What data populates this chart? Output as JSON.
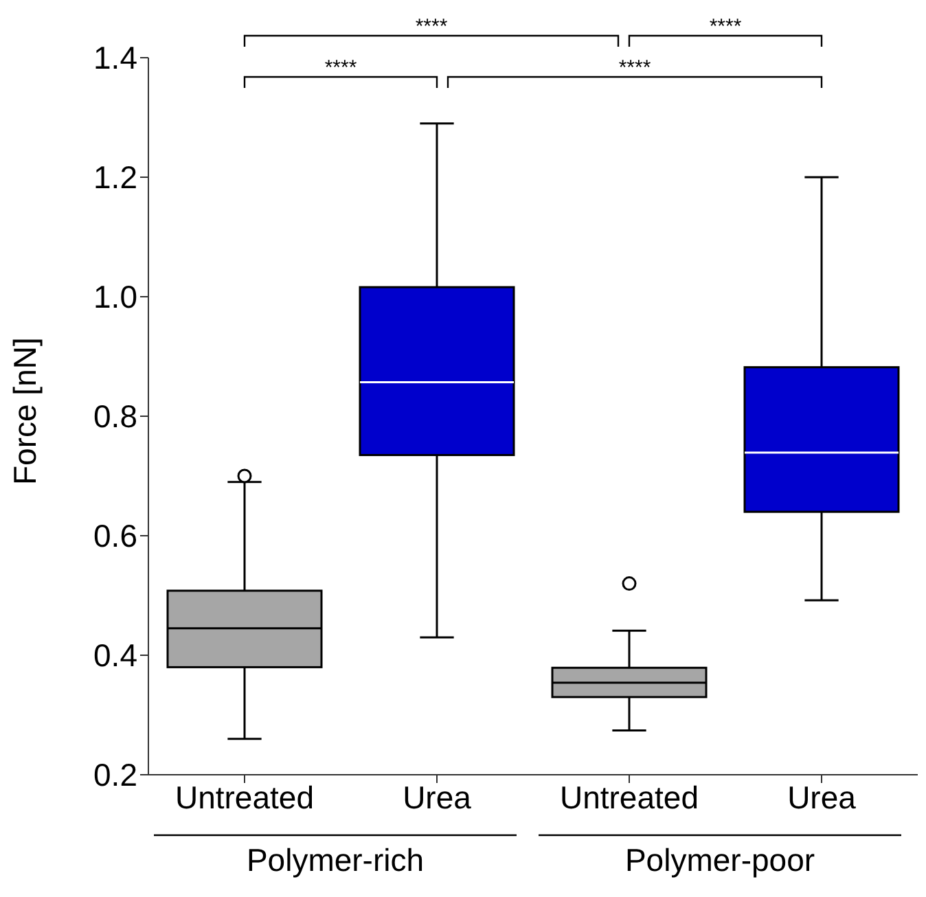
{
  "chart_data": {
    "type": "box",
    "ylabel": "Force [nN]",
    "categories": [
      "Untreated",
      "Urea",
      "Untreated",
      "Urea"
    ],
    "colors": [
      "#a6a6a6",
      "#0000cc",
      "#a6a6a6",
      "#0000cc"
    ],
    "boxes": [
      {
        "low": 0.26,
        "q1": 0.38,
        "median": 0.445,
        "q3": 0.508,
        "high": 0.69,
        "outliers": [
          0.7
        ]
      },
      {
        "low": 0.43,
        "q1": 0.735,
        "median": 0.857,
        "q3": 1.016,
        "high": 1.29
      },
      {
        "low": 0.274,
        "q1": 0.33,
        "median": 0.354,
        "q3": 0.379,
        "high": 0.441,
        "outliers": [
          0.52
        ]
      },
      {
        "low": 0.492,
        "q1": 0.64,
        "median": 0.739,
        "q3": 0.882,
        "high": 1.2
      }
    ],
    "ylim": [
      0.2,
      1.4
    ],
    "yticks": [
      0.2,
      0.4,
      0.6,
      0.8,
      {
        "value": 1,
        "label": "1.0"
      },
      1.2,
      1.4
    ],
    "annotations": [
      "****",
      "****",
      "****",
      "****",
      "Polymer-rich",
      "Polymer-poor"
    ]
  }
}
